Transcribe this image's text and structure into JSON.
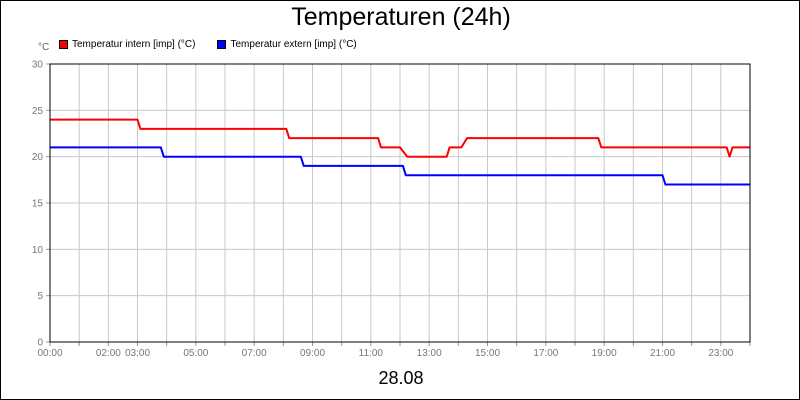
{
  "chart_data": {
    "type": "line",
    "title": "Temperaturen (24h)",
    "y_unit": "°C",
    "date": "28.08",
    "xlabel": "",
    "ylabel": "°C",
    "xlim": [
      0,
      24
    ],
    "ylim": [
      0,
      30
    ],
    "grid": true,
    "legend_position": "top-left",
    "y_ticks": [
      0,
      5,
      10,
      15,
      20,
      25,
      30
    ],
    "x_ticks": [
      {
        "x": 0.0,
        "label": "00:00"
      },
      {
        "x": 2.0,
        "label": "02:00"
      },
      {
        "x": 3.0,
        "label": "03:00"
      },
      {
        "x": 5.0,
        "label": "05:00"
      },
      {
        "x": 7.0,
        "label": "07:00"
      },
      {
        "x": 9.0,
        "label": "09:00"
      },
      {
        "x": 11.0,
        "label": "11:00"
      },
      {
        "x": 13.0,
        "label": "13:00"
      },
      {
        "x": 15.0,
        "label": "15:00"
      },
      {
        "x": 17.0,
        "label": "17:00"
      },
      {
        "x": 19.0,
        "label": "19:00"
      },
      {
        "x": 21.0,
        "label": "21:00"
      },
      {
        "x": 23.0,
        "label": "23:00"
      }
    ],
    "series": [
      {
        "name": "Temperatur intern [imp] (°C)",
        "color": "#ff0000",
        "points": [
          [
            0.0,
            24
          ],
          [
            3.0,
            24
          ],
          [
            3.1,
            23
          ],
          [
            8.1,
            23
          ],
          [
            8.2,
            22
          ],
          [
            11.25,
            22
          ],
          [
            11.35,
            21
          ],
          [
            12.0,
            21
          ],
          [
            12.25,
            20
          ],
          [
            13.6,
            20
          ],
          [
            13.7,
            21
          ],
          [
            14.1,
            21
          ],
          [
            14.3,
            22
          ],
          [
            18.8,
            22
          ],
          [
            18.9,
            21
          ],
          [
            23.2,
            21
          ],
          [
            23.3,
            20
          ],
          [
            23.4,
            21
          ],
          [
            24.0,
            21
          ]
        ]
      },
      {
        "name": "Temperatur extern [imp] (°C)",
        "color": "#0000ff",
        "points": [
          [
            0.0,
            21
          ],
          [
            3.8,
            21
          ],
          [
            3.9,
            20
          ],
          [
            8.6,
            20
          ],
          [
            8.7,
            19
          ],
          [
            12.1,
            19
          ],
          [
            12.2,
            18
          ],
          [
            21.0,
            18
          ],
          [
            21.1,
            17
          ],
          [
            24.0,
            17
          ]
        ]
      }
    ]
  }
}
